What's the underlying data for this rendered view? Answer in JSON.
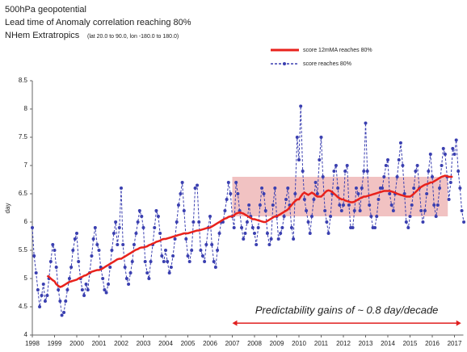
{
  "chart_data": {
    "type": "line",
    "title": "500hPa geopotential",
    "subtitle": "Lead time of Anomaly correlation reaching 80%",
    "region": "NHem Extratropics",
    "region_detail": "(lat 20.0 to 90.0, lon -180.0 to 180.0)",
    "y_label": "day",
    "legend": "upper right",
    "xlim": [
      1998,
      2017.4
    ],
    "ylim": [
      4,
      8.5
    ],
    "xticks": [
      1998,
      1999,
      2000,
      2001,
      2002,
      2003,
      2004,
      2005,
      2006,
      2007,
      2008,
      2009,
      2010,
      2011,
      2012,
      2013,
      2014,
      2015,
      2016,
      2017
    ],
    "yticks": [
      4,
      4.5,
      5,
      5.5,
      6,
      6.5,
      7,
      7.5,
      8,
      8.5
    ],
    "highlight": {
      "x": [
        2007,
        2016.7
      ],
      "y": [
        6.1,
        6.8
      ],
      "color": "#e89a9a"
    },
    "annotation": {
      "text": "Predictability gains of ~ 0.8 day/decade",
      "x": [
        2007,
        2017.3
      ],
      "y": 4.21,
      "color": "#e02020"
    },
    "x": [
      1998.0,
      1998.08,
      1998.17,
      1998.25,
      1998.33,
      1998.42,
      1998.5,
      1998.58,
      1998.67,
      1998.75,
      1998.83,
      1998.92,
      1999.0,
      1999.08,
      1999.17,
      1999.25,
      1999.33,
      1999.42,
      1999.5,
      1999.58,
      1999.67,
      1999.75,
      1999.83,
      1999.92,
      2000.0,
      2000.08,
      2000.17,
      2000.25,
      2000.33,
      2000.42,
      2000.5,
      2000.58,
      2000.67,
      2000.75,
      2000.83,
      2000.92,
      2001.0,
      2001.08,
      2001.17,
      2001.25,
      2001.33,
      2001.42,
      2001.5,
      2001.58,
      2001.67,
      2001.75,
      2001.83,
      2001.92,
      2002.0,
      2002.08,
      2002.17,
      2002.25,
      2002.33,
      2002.42,
      2002.5,
      2002.58,
      2002.67,
      2002.75,
      2002.83,
      2002.92,
      2003.0,
      2003.08,
      2003.17,
      2003.25,
      2003.33,
      2003.42,
      2003.5,
      2003.58,
      2003.67,
      2003.75,
      2003.83,
      2003.92,
      2004.0,
      2004.08,
      2004.17,
      2004.25,
      2004.33,
      2004.42,
      2004.5,
      2004.58,
      2004.67,
      2004.75,
      2004.83,
      2004.92,
      2005.0,
      2005.08,
      2005.17,
      2005.25,
      2005.33,
      2005.42,
      2005.5,
      2005.58,
      2005.67,
      2005.75,
      2005.83,
      2005.92,
      2006.0,
      2006.08,
      2006.17,
      2006.25,
      2006.33,
      2006.42,
      2006.5,
      2006.58,
      2006.67,
      2006.75,
      2006.83,
      2006.92,
      2007.0,
      2007.08,
      2007.17,
      2007.25,
      2007.33,
      2007.42,
      2007.5,
      2007.58,
      2007.67,
      2007.75,
      2007.83,
      2007.92,
      2008.0,
      2008.08,
      2008.17,
      2008.25,
      2008.33,
      2008.42,
      2008.5,
      2008.58,
      2008.67,
      2008.75,
      2008.83,
      2008.92,
      2009.0,
      2009.08,
      2009.17,
      2009.25,
      2009.33,
      2009.42,
      2009.5,
      2009.58,
      2009.67,
      2009.75,
      2009.83,
      2009.92,
      2010.0,
      2010.08,
      2010.17,
      2010.25,
      2010.33,
      2010.42,
      2010.5,
      2010.58,
      2010.67,
      2010.75,
      2010.83,
      2010.92,
      2011.0,
      2011.08,
      2011.17,
      2011.25,
      2011.33,
      2011.42,
      2011.5,
      2011.58,
      2011.67,
      2011.75,
      2011.83,
      2011.92,
      2012.0,
      2012.08,
      2012.17,
      2012.25,
      2012.33,
      2012.42,
      2012.5,
      2012.58,
      2012.67,
      2012.75,
      2012.83,
      2012.92,
      2013.0,
      2013.08,
      2013.17,
      2013.25,
      2013.33,
      2013.42,
      2013.5,
      2013.58,
      2013.67,
      2013.75,
      2013.83,
      2013.92,
      2014.0,
      2014.08,
      2014.17,
      2014.25,
      2014.33,
      2014.42,
      2014.5,
      2014.58,
      2014.67,
      2014.75,
      2014.83,
      2014.92,
      2015.0,
      2015.08,
      2015.17,
      2015.25,
      2015.33,
      2015.42,
      2015.5,
      2015.58,
      2015.67,
      2015.75,
      2015.83,
      2015.92,
      2016.0,
      2016.08,
      2016.17,
      2016.25,
      2016.33,
      2016.42,
      2016.5,
      2016.58,
      2016.67,
      2016.75,
      2016.83,
      2016.92,
      2017.0,
      2017.08,
      2017.17,
      2017.25,
      2017.33,
      2017.42
    ],
    "series": [
      {
        "name": "score 12mMA reaches 80%",
        "color": "#e8221c",
        "width": 2.5,
        "values": [
          null,
          null,
          null,
          null,
          null,
          null,
          null,
          null,
          5.05,
          5.03,
          5.0,
          4.97,
          4.95,
          4.9,
          4.87,
          4.85,
          4.86,
          4.88,
          4.9,
          4.92,
          4.94,
          4.95,
          4.96,
          4.97,
          4.98,
          5.0,
          5.02,
          5.03,
          5.05,
          5.06,
          5.08,
          5.1,
          5.12,
          5.13,
          5.14,
          5.15,
          5.15,
          5.16,
          5.18,
          5.2,
          5.22,
          5.24,
          5.26,
          5.28,
          5.3,
          5.32,
          5.34,
          5.35,
          5.35,
          5.37,
          5.39,
          5.41,
          5.43,
          5.45,
          5.47,
          5.49,
          5.51,
          5.52,
          5.54,
          5.55,
          5.55,
          5.56,
          5.57,
          5.59,
          5.6,
          5.62,
          5.63,
          5.65,
          5.66,
          5.67,
          5.69,
          5.7,
          5.7,
          5.71,
          5.72,
          5.73,
          5.74,
          5.75,
          5.76,
          5.77,
          5.78,
          5.79,
          5.8,
          5.8,
          5.8,
          5.81,
          5.82,
          5.83,
          5.84,
          5.85,
          5.85,
          5.86,
          5.87,
          5.88,
          5.89,
          5.9,
          5.9,
          5.92,
          5.94,
          5.96,
          5.98,
          6.0,
          6.02,
          6.04,
          6.06,
          6.07,
          6.09,
          6.1,
          6.1,
          6.12,
          6.15,
          6.16,
          6.17,
          6.16,
          6.15,
          6.13,
          6.11,
          6.09,
          6.07,
          6.05,
          6.05,
          6.04,
          6.03,
          6.02,
          6.01,
          6.0,
          6.0,
          6.02,
          6.04,
          6.06,
          6.08,
          6.1,
          6.1,
          6.12,
          6.14,
          6.16,
          6.18,
          6.2,
          6.22,
          6.26,
          6.3,
          6.34,
          6.37,
          6.4,
          6.4,
          6.45,
          6.5,
          6.52,
          6.5,
          6.48,
          6.5,
          6.52,
          6.5,
          6.47,
          6.45,
          6.45,
          6.45,
          6.48,
          6.52,
          6.55,
          6.56,
          6.55,
          6.53,
          6.5,
          6.47,
          6.44,
          6.42,
          6.4,
          6.4,
          6.38,
          6.37,
          6.36,
          6.35,
          6.35,
          6.36,
          6.38,
          6.4,
          6.42,
          6.43,
          6.45,
          6.45,
          6.46,
          6.47,
          6.48,
          6.49,
          6.5,
          6.51,
          6.52,
          6.53,
          6.54,
          6.55,
          6.55,
          6.55,
          6.55,
          6.54,
          6.53,
          6.52,
          6.5,
          6.49,
          6.48,
          6.47,
          6.46,
          6.45,
          6.45,
          6.45,
          6.47,
          6.5,
          6.53,
          6.56,
          6.6,
          6.62,
          6.64,
          6.66,
          6.67,
          6.68,
          6.7,
          6.7,
          6.72,
          6.74,
          6.76,
          6.78,
          6.8,
          6.81,
          6.82,
          6.81,
          6.8,
          6.8,
          6.8,
          null,
          null,
          null,
          null,
          null,
          null
        ]
      },
      {
        "name": "score reaches 80%",
        "color": "#3a3fb0",
        "width": 1,
        "dashed": true,
        "markers": true,
        "values": [
          5.9,
          5.4,
          5.1,
          4.8,
          4.5,
          4.7,
          4.9,
          4.6,
          4.7,
          5.0,
          5.3,
          5.6,
          5.5,
          5.2,
          4.8,
          4.6,
          4.35,
          4.4,
          4.6,
          4.8,
          5.0,
          5.2,
          5.5,
          5.7,
          5.8,
          5.3,
          5.0,
          4.8,
          4.7,
          4.9,
          4.8,
          5.1,
          5.4,
          5.7,
          5.9,
          5.6,
          5.5,
          5.2,
          5.0,
          4.8,
          4.75,
          4.9,
          5.2,
          5.5,
          5.8,
          6.0,
          5.6,
          5.9,
          6.6,
          5.6,
          5.2,
          5.0,
          4.9,
          5.1,
          5.3,
          5.6,
          5.8,
          6.0,
          6.2,
          6.1,
          5.9,
          5.3,
          5.1,
          5.0,
          5.3,
          5.6,
          5.9,
          6.2,
          6.1,
          5.8,
          5.4,
          5.3,
          5.5,
          5.3,
          5.1,
          5.2,
          5.4,
          5.7,
          6.0,
          6.3,
          6.5,
          6.7,
          6.2,
          5.7,
          5.4,
          5.3,
          5.5,
          6.0,
          6.6,
          6.65,
          6.0,
          5.5,
          5.4,
          5.3,
          5.6,
          5.9,
          6.1,
          5.6,
          5.3,
          5.2,
          5.5,
          5.8,
          6.0,
          6.0,
          6.2,
          6.4,
          6.7,
          6.5,
          6.1,
          5.9,
          6.7,
          6.5,
          6.2,
          5.9,
          5.7,
          5.8,
          6.0,
          6.3,
          6.1,
          5.9,
          5.8,
          5.6,
          5.9,
          6.3,
          6.6,
          6.5,
          6.2,
          5.8,
          5.6,
          5.7,
          6.3,
          6.6,
          6.1,
          5.7,
          5.8,
          5.9,
          6.1,
          6.4,
          6.6,
          6.3,
          5.9,
          5.7,
          6.5,
          7.5,
          7.1,
          8.05,
          6.9,
          6.4,
          6.2,
          6.0,
          5.8,
          6.1,
          6.4,
          6.7,
          6.5,
          7.1,
          7.5,
          6.8,
          6.2,
          6.0,
          5.8,
          6.1,
          6.5,
          6.9,
          7.0,
          6.6,
          6.3,
          6.2,
          6.3,
          6.9,
          7.0,
          6.3,
          5.9,
          5.9,
          6.2,
          6.6,
          6.5,
          6.2,
          6.6,
          6.9,
          7.75,
          6.9,
          6.3,
          6.1,
          5.9,
          5.9,
          6.1,
          6.4,
          6.6,
          6.6,
          6.8,
          7.0,
          7.1,
          6.5,
          6.3,
          6.2,
          6.5,
          6.8,
          7.1,
          7.4,
          7.0,
          6.5,
          6.0,
          5.9,
          6.1,
          6.3,
          6.6,
          6.9,
          7.0,
          6.6,
          6.2,
          6.0,
          6.2,
          6.5,
          6.9,
          7.2,
          6.8,
          6.3,
          6.1,
          6.3,
          6.6,
          7.0,
          7.3,
          7.2,
          6.8,
          6.4,
          6.7,
          7.3,
          7.2,
          7.45,
          6.9,
          6.6,
          6.2,
          6.0
        ]
      }
    ]
  }
}
